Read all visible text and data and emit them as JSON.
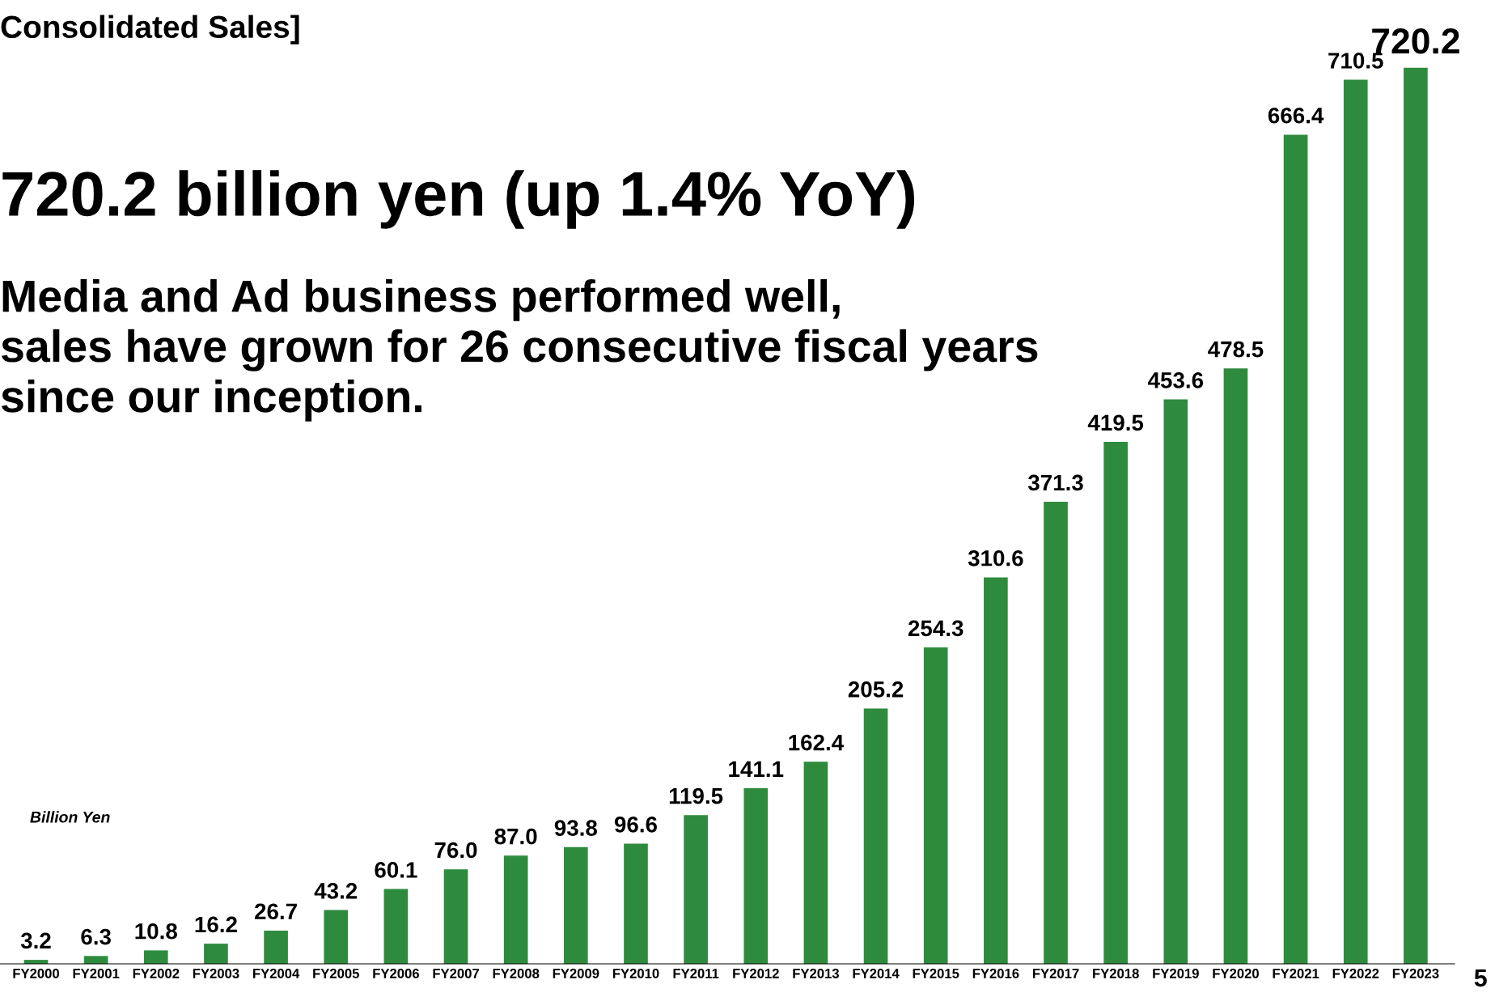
{
  "chart_data": {
    "type": "bar",
    "title": "Consolidated Sales]",
    "subtitle": "720.2 billion yen (up 1.4% YoY)",
    "ylabel": "Billion Yen",
    "annotations": [
      "Media and Ad business performed well,\nsales have grown for 26 consecutive fiscal years\nsince our inception.",
      "5"
    ],
    "categories": [
      "FY2000",
      "FY2001",
      "FY2002",
      "FY2003",
      "FY2004",
      "FY2005",
      "FY2006",
      "FY2007",
      "FY2008",
      "FY2009",
      "FY2010",
      "FY2011",
      "FY2012",
      "FY2013",
      "FY2014",
      "FY2015",
      "FY2016",
      "FY2017",
      "FY2018",
      "FY2019",
      "FY2020",
      "FY2021",
      "FY2022",
      "FY2023"
    ],
    "values": [
      3.2,
      6.3,
      10.8,
      16.2,
      26.7,
      43.2,
      60.1,
      76.0,
      87.0,
      93.8,
      96.6,
      119.5,
      141.1,
      162.4,
      205.2,
      254.3,
      310.6,
      371.3,
      419.5,
      453.6,
      478.5,
      666.4,
      710.5,
      720.2
    ],
    "value_labels": [
      "3.2",
      "6.3",
      "10.8",
      "16.2",
      "26.7",
      "43.2",
      "60.1",
      "76.0",
      "87.0",
      "93.8",
      "96.6",
      "119.5",
      "141.1",
      "162.4",
      "205.2",
      "254.3",
      "310.6",
      "371.3",
      "419.5",
      "453.6",
      "478.5",
      "666.4",
      "710.5",
      "720.2"
    ],
    "color": "#2e8b3e",
    "grid": false,
    "legend": false
  }
}
